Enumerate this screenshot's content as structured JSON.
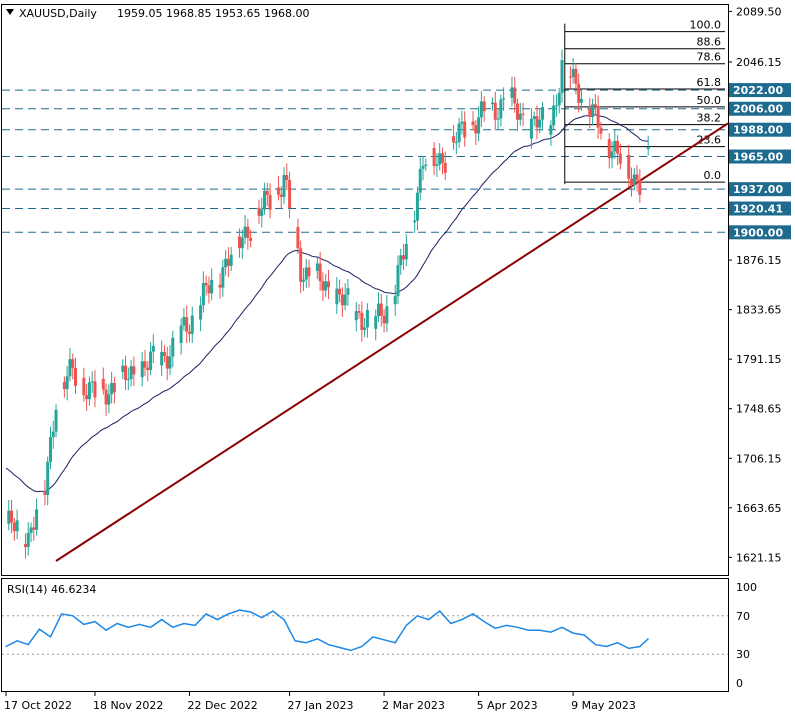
{
  "header": {
    "symbol": "XAUUSD,Daily",
    "ohlc": "1959.05 1968.85 1953.65 1968.00"
  },
  "rsi_header": "RSI(14) 46.6234",
  "colors": {
    "bull": "#26a69a",
    "bear": "#ef5350",
    "ma": "#1a1f5e",
    "trend": "#8b0000",
    "level_box": "#1e6b8f",
    "rsi": "#1e88e5",
    "dash": "#1e6b8f"
  },
  "chart_data": [
    {
      "type": "candlestick",
      "title": "XAUUSD,Daily",
      "y_ticks": [
        "2089.50",
        "2046.15",
        "1876.15",
        "1833.65",
        "1791.15",
        "1748.65",
        "1706.15",
        "1663.65",
        "1621.15"
      ],
      "y_tick_values": [
        2089.5,
        2046.15,
        1876.15,
        1833.65,
        1791.15,
        1748.65,
        1706.15,
        1663.65,
        1621.15
      ],
      "x_ticks": [
        "17 Oct 2022",
        "18 Nov 2022",
        "22 Dec 2022",
        "27 Jan 2023",
        "2 Mar 2023",
        "5 Apr 2023",
        "9 May 2023"
      ],
      "x_tick_days": [
        0,
        32,
        66,
        102,
        136,
        170,
        204
      ],
      "ylim": [
        1606,
        2095
      ],
      "horizontal_levels": [
        2022.0,
        2006.0,
        1988.0,
        1965.0,
        1937.0,
        1920.41,
        1900.0
      ],
      "horizontal_level_labels": [
        "2022.00",
        "2006.00",
        "1988.00",
        "1965.00",
        "1937.00",
        "1920.41",
        "1900.00"
      ],
      "fibonacci": {
        "labels": [
          "100.0",
          "88.6",
          "78.6",
          "61.8",
          "50.0",
          "38.2",
          "23.6",
          "0.0"
        ],
        "levels": [
          2072.2,
          2057.5,
          2044.6,
          2022.9,
          2007.6,
          1992.4,
          1973.5,
          1943.0
        ]
      },
      "trendline": {
        "from": {
          "day": 0,
          "price": 1618
        },
        "to": {
          "day": 232,
          "price": 1990
        }
      },
      "moving_average_start": 1700,
      "series_close_anchors": [
        {
          "day": 0,
          "price": 1650
        },
        {
          "day": 8,
          "price": 1640
        },
        {
          "day": 14,
          "price": 1680
        },
        {
          "day": 18,
          "price": 1760
        },
        {
          "day": 24,
          "price": 1780
        },
        {
          "day": 32,
          "price": 1760
        },
        {
          "day": 40,
          "price": 1770
        },
        {
          "day": 50,
          "price": 1785
        },
        {
          "day": 60,
          "price": 1800
        },
        {
          "day": 70,
          "price": 1840
        },
        {
          "day": 78,
          "price": 1870
        },
        {
          "day": 86,
          "price": 1900
        },
        {
          "day": 100,
          "price": 1945
        },
        {
          "day": 106,
          "price": 1870
        },
        {
          "day": 114,
          "price": 1855
        },
        {
          "day": 122,
          "price": 1840
        },
        {
          "day": 132,
          "price": 1820
        },
        {
          "day": 140,
          "price": 1850
        },
        {
          "day": 144,
          "price": 1890
        },
        {
          "day": 150,
          "price": 1960
        },
        {
          "day": 158,
          "price": 1965
        },
        {
          "day": 165,
          "price": 1990
        },
        {
          "day": 172,
          "price": 2000
        },
        {
          "day": 180,
          "price": 2015
        },
        {
          "day": 188,
          "price": 1992
        },
        {
          "day": 196,
          "price": 1995
        },
        {
          "day": 200,
          "price": 2040
        },
        {
          "day": 206,
          "price": 2025
        },
        {
          "day": 212,
          "price": 1995
        },
        {
          "day": 218,
          "price": 1975
        },
        {
          "day": 224,
          "price": 1950
        },
        {
          "day": 228,
          "price": 1945
        },
        {
          "day": 231,
          "price": 1968
        }
      ]
    },
    {
      "type": "line",
      "title": "RSI(14) 46.6234",
      "y_ticks": [
        "100",
        "70",
        "30",
        "0"
      ],
      "y_tick_values": [
        100,
        70,
        30,
        0
      ],
      "ylim": [
        0,
        100
      ],
      "dashed_levels": [
        70,
        30
      ],
      "series": [
        {
          "x_days": [
            0,
            4,
            8,
            12,
            16,
            20,
            24,
            28,
            32,
            36,
            40,
            44,
            48,
            52,
            56,
            60,
            64,
            68,
            72,
            76,
            80,
            84,
            88,
            92,
            96,
            100,
            104,
            108,
            112,
            116,
            120,
            124,
            128,
            132,
            136,
            140,
            144,
            148,
            152,
            156,
            160,
            164,
            168,
            172,
            176,
            180,
            184,
            188,
            192,
            196,
            200,
            204,
            208,
            212,
            216,
            220,
            224,
            228,
            231
          ],
          "values": [
            38,
            44,
            40,
            56,
            48,
            72,
            70,
            61,
            64,
            55,
            62,
            58,
            61,
            58,
            66,
            58,
            62,
            60,
            72,
            66,
            72,
            76,
            74,
            68,
            75,
            66,
            44,
            42,
            46,
            40,
            37,
            34,
            38,
            48,
            45,
            42,
            60,
            70,
            66,
            75,
            62,
            66,
            72,
            64,
            57,
            60,
            58,
            55,
            55,
            53,
            58,
            52,
            50,
            40,
            38,
            42,
            36,
            38,
            46
          ]
        }
      ]
    }
  ]
}
